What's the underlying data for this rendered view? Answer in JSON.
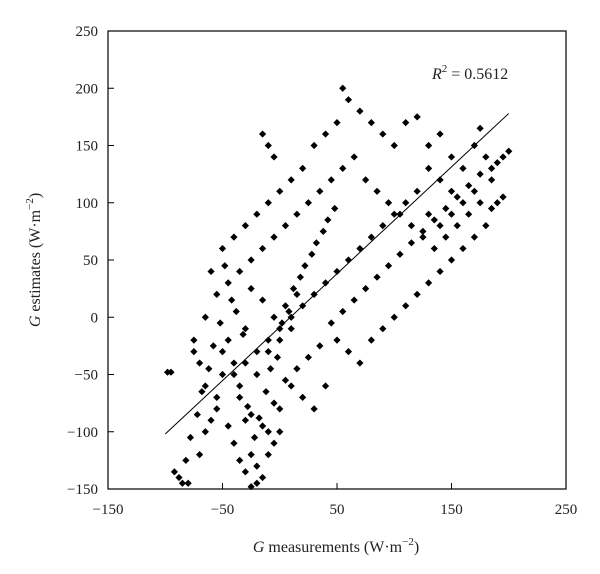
{
  "chart_data": {
    "type": "scatter",
    "title": "",
    "xlabel": {
      "var": "G",
      "text": " measurements (W·m",
      "sup": "−2",
      "close": ")"
    },
    "ylabel": {
      "var": "G",
      "text": " estimates (W·m",
      "sup": "−2",
      "close": ")"
    },
    "xlim": [
      -150,
      250
    ],
    "ylim": [
      -150,
      250
    ],
    "xticks": [
      -150,
      -50,
      50,
      150,
      250
    ],
    "yticks": [
      -150,
      -100,
      -50,
      0,
      50,
      100,
      150,
      200,
      250
    ],
    "xtick_labels": [
      "−150",
      "−50",
      "50",
      "150",
      "250"
    ],
    "ytick_labels": [
      "−150",
      "−100",
      "−50",
      "0",
      "50",
      "100",
      "150",
      "200",
      "250"
    ],
    "grid": false,
    "marker": "diamond",
    "marker_color": "#000000",
    "annotation": {
      "var": "R",
      "sup": "2",
      "text": " = 0.5612"
    },
    "fit_line": {
      "x": [
        -100,
        200
      ],
      "y": [
        -102,
        178
      ]
    },
    "series": [
      {
        "values": [
          [
            -20,
            -130
          ],
          [
            -15,
            -140
          ],
          [
            -25,
            -120
          ],
          [
            -10,
            -100
          ],
          [
            -30,
            -90
          ],
          [
            -5,
            -110
          ],
          [
            0,
            -80
          ],
          [
            -35,
            -60
          ],
          [
            -40,
            -40
          ],
          [
            -20,
            -50
          ],
          [
            -10,
            -30
          ],
          [
            0,
            -20
          ],
          [
            10,
            -10
          ],
          [
            -5,
            0
          ],
          [
            5,
            10
          ],
          [
            15,
            20
          ],
          [
            -15,
            15
          ],
          [
            -25,
            25
          ],
          [
            -30,
            -10
          ],
          [
            -45,
            -20
          ],
          [
            -50,
            -50
          ],
          [
            -55,
            -70
          ],
          [
            -60,
            -90
          ],
          [
            -65,
            -100
          ],
          [
            -70,
            -120
          ],
          [
            -80,
            -145
          ],
          [
            -85,
            -145
          ],
          [
            -95,
            -48
          ],
          [
            -75,
            -30
          ],
          [
            -60,
            40
          ],
          [
            -50,
            60
          ],
          [
            -40,
            70
          ],
          [
            -30,
            80
          ],
          [
            -20,
            90
          ],
          [
            -10,
            100
          ],
          [
            0,
            110
          ],
          [
            10,
            120
          ],
          [
            20,
            130
          ],
          [
            -5,
            140
          ],
          [
            -10,
            150
          ],
          [
            -15,
            160
          ],
          [
            30,
            150
          ],
          [
            40,
            160
          ],
          [
            50,
            170
          ],
          [
            55,
            200
          ],
          [
            60,
            190
          ],
          [
            70,
            180
          ],
          [
            80,
            170
          ],
          [
            90,
            160
          ],
          [
            100,
            150
          ],
          [
            110,
            170
          ],
          [
            120,
            175
          ],
          [
            130,
            150
          ],
          [
            140,
            160
          ],
          [
            150,
            140
          ],
          [
            160,
            130
          ],
          [
            170,
            150
          ],
          [
            175,
            165
          ],
          [
            180,
            140
          ],
          [
            185,
            120
          ],
          [
            190,
            135
          ],
          [
            195,
            140
          ],
          [
            200,
            145
          ],
          [
            185,
            95
          ],
          [
            180,
            80
          ],
          [
            170,
            70
          ],
          [
            160,
            60
          ],
          [
            150,
            50
          ],
          [
            140,
            40
          ],
          [
            130,
            30
          ],
          [
            120,
            20
          ],
          [
            110,
            10
          ],
          [
            100,
            0
          ],
          [
            90,
            -10
          ],
          [
            80,
            -20
          ],
          [
            70,
            -40
          ],
          [
            60,
            -30
          ],
          [
            50,
            -20
          ],
          [
            40,
            -60
          ],
          [
            30,
            -80
          ],
          [
            20,
            -70
          ],
          [
            10,
            -60
          ],
          [
            0,
            -100
          ],
          [
            -10,
            -120
          ],
          [
            -20,
            -145
          ],
          [
            -25,
            -148
          ],
          [
            -30,
            -135
          ],
          [
            -35,
            -125
          ],
          [
            -40,
            -110
          ],
          [
            -45,
            -95
          ],
          [
            -55,
            -80
          ],
          [
            -65,
            -60
          ],
          [
            -70,
            -40
          ],
          [
            -75,
            -20
          ],
          [
            -65,
            0
          ],
          [
            -55,
            20
          ],
          [
            -45,
            30
          ],
          [
            -35,
            40
          ],
          [
            -25,
            50
          ],
          [
            -15,
            60
          ],
          [
            -5,
            70
          ],
          [
            5,
            80
          ],
          [
            15,
            90
          ],
          [
            25,
            100
          ],
          [
            35,
            110
          ],
          [
            45,
            120
          ],
          [
            55,
            130
          ],
          [
            65,
            140
          ],
          [
            75,
            120
          ],
          [
            85,
            110
          ],
          [
            95,
            100
          ],
          [
            105,
            90
          ],
          [
            115,
            80
          ],
          [
            125,
            70
          ],
          [
            135,
            60
          ],
          [
            145,
            70
          ],
          [
            155,
            80
          ],
          [
            165,
            90
          ],
          [
            175,
            100
          ],
          [
            150,
            110
          ],
          [
            140,
            120
          ],
          [
            130,
            130
          ],
          [
            120,
            110
          ],
          [
            110,
            100
          ],
          [
            100,
            90
          ],
          [
            90,
            80
          ],
          [
            80,
            70
          ],
          [
            70,
            60
          ],
          [
            60,
            50
          ],
          [
            50,
            40
          ],
          [
            40,
            30
          ],
          [
            30,
            20
          ],
          [
            20,
            10
          ],
          [
            10,
            0
          ],
          [
            0,
            -10
          ],
          [
            -10,
            -20
          ],
          [
            -20,
            -30
          ],
          [
            -30,
            -40
          ],
          [
            -40,
            -50
          ],
          [
            -50,
            -30
          ],
          [
            -35,
            -70
          ],
          [
            -25,
            -85
          ],
          [
            -15,
            -95
          ],
          [
            -5,
            -75
          ],
          [
            5,
            -55
          ],
          [
            15,
            -45
          ],
          [
            25,
            -35
          ],
          [
            35,
            -25
          ],
          [
            45,
            -5
          ],
          [
            55,
            5
          ],
          [
            65,
            15
          ],
          [
            75,
            25
          ],
          [
            85,
            35
          ],
          [
            95,
            45
          ],
          [
            105,
            55
          ],
          [
            115,
            65
          ],
          [
            125,
            75
          ],
          [
            135,
            85
          ],
          [
            145,
            95
          ],
          [
            155,
            105
          ],
          [
            165,
            115
          ],
          [
            175,
            125
          ],
          [
            185,
            130
          ],
          [
            190,
            100
          ],
          [
            195,
            105
          ],
          [
            160,
            100
          ],
          [
            170,
            110
          ],
          [
            150,
            90
          ],
          [
            140,
            80
          ],
          [
            130,
            90
          ],
          [
            -22,
            -105
          ],
          [
            -18,
            -88
          ],
          [
            -28,
            -78
          ],
          [
            -12,
            -65
          ],
          [
            -8,
            -45
          ],
          [
            -2,
            -35
          ],
          [
            2,
            -5
          ],
          [
            8,
            5
          ],
          [
            12,
            25
          ],
          [
            18,
            35
          ],
          [
            22,
            45
          ],
          [
            28,
            55
          ],
          [
            32,
            65
          ],
          [
            38,
            75
          ],
          [
            42,
            85
          ],
          [
            48,
            95
          ],
          [
            -32,
            -15
          ],
          [
            -38,
            5
          ],
          [
            -42,
            15
          ],
          [
            -48,
            45
          ],
          [
            -52,
            -5
          ],
          [
            -58,
            -25
          ],
          [
            -62,
            -45
          ],
          [
            -68,
            -65
          ],
          [
            -72,
            -85
          ],
          [
            -78,
            -105
          ],
          [
            -82,
            -125
          ],
          [
            -88,
            -140
          ],
          [
            -92,
            -135
          ],
          [
            -98,
            -48
          ]
        ]
      }
    ]
  }
}
